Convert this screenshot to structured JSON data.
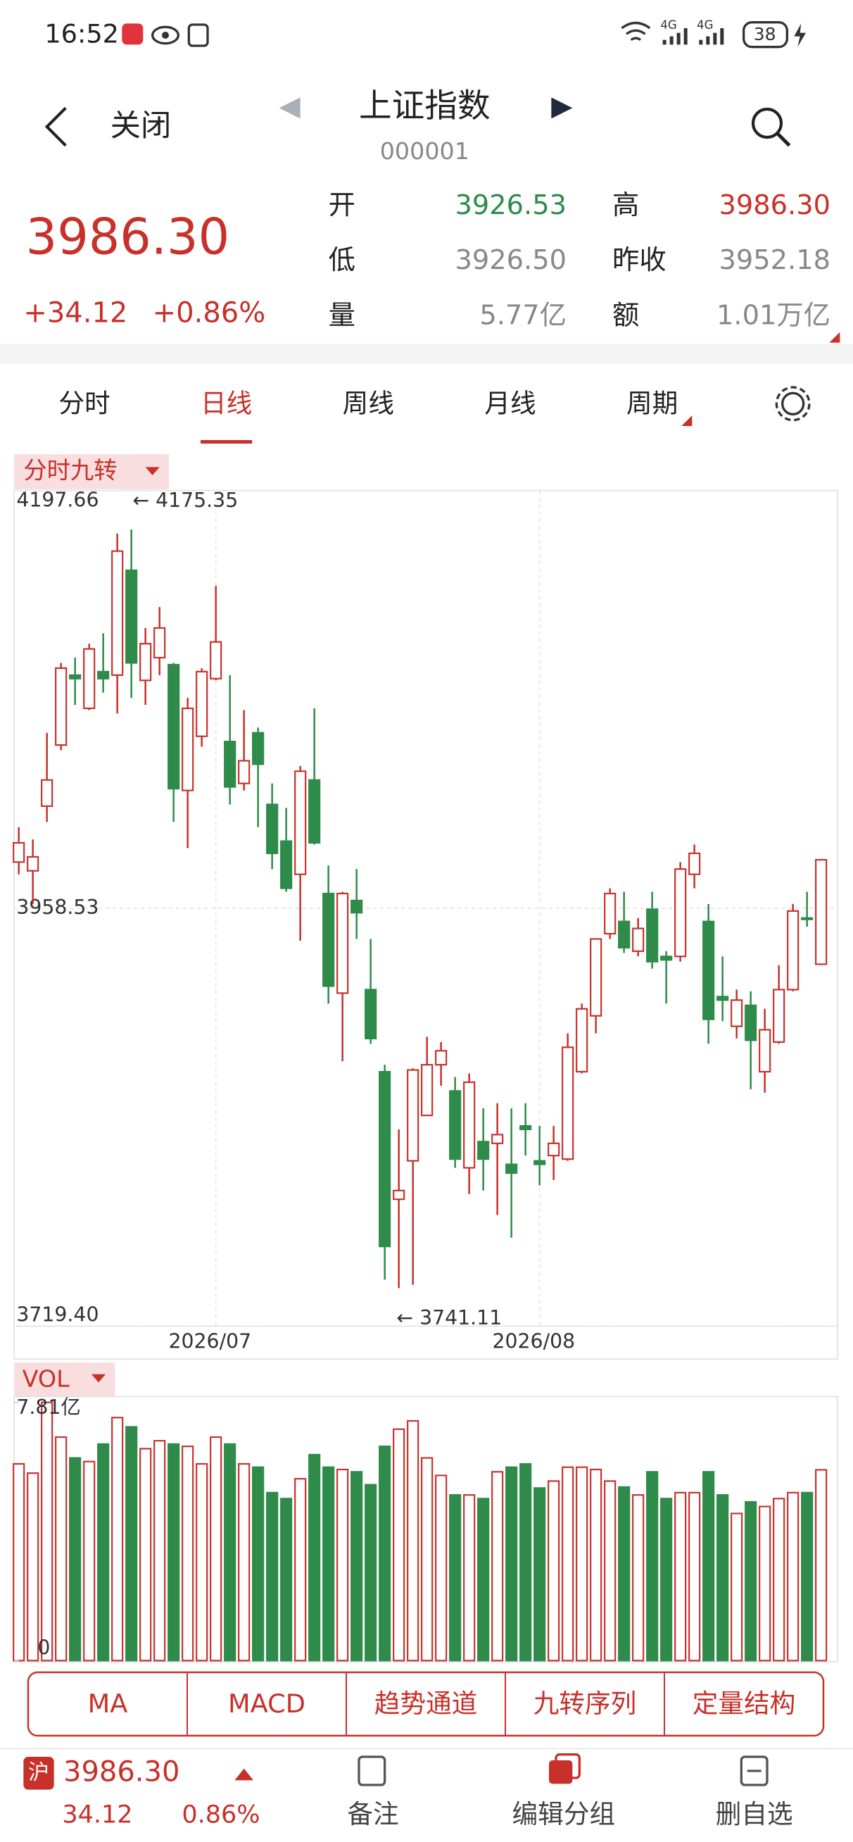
{
  "status_bar": {
    "time": "16:52",
    "network": [
      "4G",
      "4G"
    ],
    "battery": "38"
  },
  "header": {
    "back": "关闭",
    "title": "上证指数",
    "code": "000001"
  },
  "quote": {
    "price": "3986.30",
    "change": "+34.12",
    "change_pct": "+0.86%",
    "color": "#c8302a",
    "fields": [
      {
        "label": "开",
        "value": "3926.53",
        "color": "#2e8b4a"
      },
      {
        "label": "高",
        "value": "3986.30",
        "color": "#c8302a"
      },
      {
        "label": "低",
        "value": "3926.50",
        "color": "#888888"
      },
      {
        "label": "昨收",
        "value": "3952.18",
        "color": "#888888"
      },
      {
        "label": "量",
        "value": "5.77亿",
        "color": "#888888"
      },
      {
        "label": "额",
        "value": "1.01万亿",
        "color": "#888888"
      }
    ]
  },
  "tabs": {
    "items": [
      "分时",
      "日线",
      "周线",
      "月线",
      "周期"
    ],
    "active": 1
  },
  "chart_data": [
    {
      "type": "candlestick",
      "title": "分时九转",
      "up_color": "#c8302a",
      "down_color": "#2e8b4a",
      "categories": [
        null,
        null,
        null,
        null,
        null,
        null,
        null,
        null,
        null,
        null,
        null,
        null,
        null,
        null,
        "2026/07",
        null,
        null,
        null,
        null,
        null,
        null,
        null,
        null,
        null,
        null,
        null,
        null,
        null,
        null,
        null,
        null,
        null,
        null,
        null,
        null,
        null,
        null,
        "2026/08",
        null,
        null,
        null,
        null,
        null,
        null,
        null,
        null,
        null,
        null,
        null,
        null,
        null,
        null,
        null,
        null,
        null,
        null,
        null,
        null
      ],
      "open": [
        3985,
        3980,
        4017,
        4052,
        4092,
        4073,
        4094,
        4092,
        4152,
        4089,
        4102,
        4098,
        4026,
        4057,
        4090,
        4054,
        4030,
        4059,
        4018,
        3997,
        3978,
        4032,
        3967,
        3910,
        3963,
        3912,
        3865,
        3792,
        3814,
        3840,
        3869,
        3854,
        3810,
        3825,
        3824,
        3812,
        3834,
        3814,
        3817,
        3815,
        3865,
        3897,
        3944,
        3951,
        3934,
        3958,
        3931,
        3931,
        3978,
        3951,
        3908,
        3891,
        3903,
        3865,
        3882,
        3912,
        3953,
        3926.53
      ],
      "high": [
        4005,
        3998,
        4059,
        4099,
        4102,
        4110,
        4116,
        4173,
        4175.35,
        4119,
        4131,
        4099,
        4079,
        4096,
        4143,
        4092,
        4072,
        4062,
        4030,
        4016,
        4040,
        4073,
        3983,
        3968,
        3981,
        3941,
        3869,
        3832,
        3867,
        3885,
        3882,
        3862,
        3864,
        3844,
        3847,
        3844,
        3847,
        3834,
        3834,
        3887,
        3904,
        3941,
        3970,
        3968,
        3953,
        3968,
        3934,
        3985,
        3995,
        3961,
        3931,
        3912,
        3911,
        3901,
        3926,
        3961,
        3968,
        3986.3
      ],
      "low": [
        3978,
        3961,
        4008,
        4049,
        4075,
        4072,
        4082,
        4070,
        4079,
        4075,
        4092,
        4008,
        3993,
        4051,
        4089,
        4018,
        4026,
        4005,
        3981,
        3968,
        3940,
        3995,
        3904,
        3871,
        3941,
        3881,
        3746,
        3741.11,
        3743,
        3840,
        3857,
        3810,
        3795,
        3797,
        3783,
        3770,
        3817,
        3800,
        3803,
        3814,
        3864,
        3887,
        3941,
        3933,
        3931,
        3924,
        3904,
        3928,
        3970,
        3881,
        3894,
        3884,
        3855,
        3853,
        3881,
        3911,
        3948,
        3926.5
      ],
      "close": [
        3996,
        3988,
        4032,
        4096,
        4090,
        4107,
        4090,
        4163,
        4099,
        4110,
        4119,
        4027,
        4073,
        4094,
        4111,
        4028,
        4043,
        4041,
        3990,
        3970,
        4037,
        3996,
        3914,
        3967,
        3956,
        3884,
        3765,
        3797,
        3866,
        3869,
        3877,
        3815,
        3859,
        3815,
        3829,
        3807,
        3832,
        3812,
        3824,
        3879,
        3901,
        3941,
        3967,
        3936,
        3947,
        3928,
        3929,
        3981,
        3990,
        3895,
        3906,
        3906,
        3883,
        3889,
        3912,
        3957,
        3952.18,
        3986.3
      ],
      "ylim": [
        3719.4,
        4197.66
      ],
      "yticks": [
        4197.66,
        3958.53,
        {
          "value": 3719.4,
          "label": "3719.40"
        }
      ],
      "annotations": [
        "← 4175.35",
        "← 3741.11"
      ]
    },
    {
      "type": "bar",
      "title": "VOL",
      "values": [
        5.95,
        5.67,
        7.81,
        6.76,
        6.13,
        6.02,
        6.55,
        7.35,
        7.07,
        6.41,
        6.65,
        6.55,
        6.48,
        5.95,
        6.76,
        6.55,
        5.95,
        5.85,
        5.08,
        4.9,
        5.5,
        6.23,
        5.85,
        5.78,
        5.71,
        5.32,
        6.48,
        7.0,
        7.25,
        6.13,
        5.6,
        5.01,
        5.01,
        4.9,
        5.71,
        5.85,
        5.95,
        5.22,
        5.43,
        5.85,
        5.85,
        5.78,
        5.43,
        5.25,
        5.01,
        5.71,
        4.9,
        5.08,
        5.08,
        5.71,
        5.01,
        4.45,
        4.8,
        4.66,
        4.9,
        5.08,
        5.08,
        5.77
      ],
      "ylim": [
        0,
        7.81
      ],
      "yticks": [
        {
          "value": 7.81,
          "label": "7.81亿"
        },
        0
      ]
    }
  ],
  "indicator_buttons": [
    "MA",
    "MACD",
    "趋势通道",
    "九转序列",
    "定量结构"
  ],
  "footer": {
    "market": "沪",
    "price": "3986.30",
    "change": "34.12",
    "change_pct": "0.86%",
    "actions": [
      "备注",
      "编辑分组",
      "删自选"
    ]
  }
}
